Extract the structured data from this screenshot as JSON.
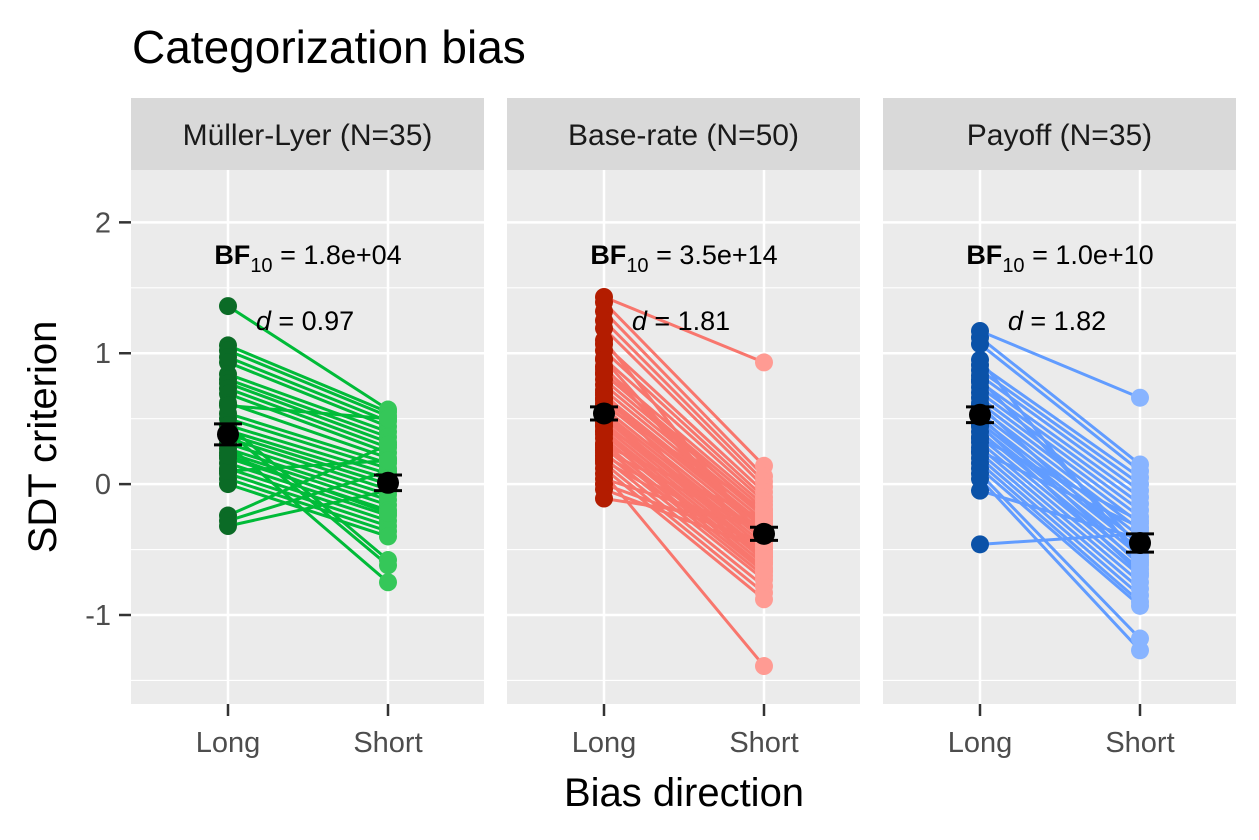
{
  "chart_data": {
    "type": "scatter",
    "title": "Categorization bias",
    "xlabel": "Bias direction",
    "ylabel": "SDT criterion",
    "ylim": [
      -1.68,
      2.4
    ],
    "yticks": [
      2,
      1,
      0,
      -1
    ],
    "ytick_labels": [
      "2",
      "1",
      "0",
      "-1"
    ],
    "x_categories": [
      "Long",
      "Short"
    ],
    "grid": true,
    "panels": [
      {
        "label": "Müller-Lyer (N=35)",
        "bf_value": " = 1.8e+04",
        "d_value": " = 0.97",
        "colors": {
          "long": "#0b6b26",
          "short": "#35c759",
          "line": "#00bb38"
        },
        "mean_long": 0.38,
        "se_long": 0.08,
        "mean_short": 0.01,
        "se_short": 0.06,
        "long": [
          1.36,
          1.06,
          1.02,
          0.97,
          0.93,
          0.84,
          0.8,
          0.77,
          0.73,
          0.69,
          0.62,
          0.54,
          0.5,
          0.45,
          0.41,
          0.38,
          0.35,
          0.31,
          0.27,
          0.24,
          0.2,
          0.16,
          0.12,
          0.08,
          0.04,
          0.0,
          0.45,
          0.4,
          0.3,
          -0.24,
          -0.28,
          -0.32,
          0.1,
          0.22,
          0.6
        ],
        "short": [
          0.57,
          0.55,
          0.52,
          0.48,
          0.44,
          0.4,
          0.36,
          0.32,
          0.28,
          0.24,
          0.2,
          0.16,
          0.12,
          0.08,
          0.04,
          0.0,
          -0.04,
          -0.08,
          -0.12,
          -0.16,
          -0.2,
          -0.24,
          -0.28,
          -0.32,
          -0.36,
          -0.4,
          -0.58,
          -0.62,
          -0.75,
          0.3,
          0.1,
          -0.05,
          0.18,
          -0.22,
          0.5
        ]
      },
      {
        "label": "Base-rate (N=50)",
        "bf_value": " = 3.5e+14",
        "d_value": " = 1.81",
        "colors": {
          "long": "#b31c00",
          "short": "#ff9b93",
          "line": "#f8766d"
        },
        "mean_long": 0.54,
        "se_long": 0.05,
        "mean_short": -0.38,
        "se_short": 0.05,
        "long": [
          1.43,
          1.39,
          1.32,
          1.25,
          1.19,
          1.07,
          1.02,
          0.96,
          0.88,
          0.84,
          0.8,
          0.76,
          0.72,
          0.68,
          0.65,
          0.62,
          0.58,
          0.55,
          0.52,
          0.5,
          0.47,
          0.44,
          0.41,
          0.38,
          0.35,
          0.31,
          0.28,
          0.24,
          0.2,
          0.16,
          0.12,
          0.08,
          0.04,
          0.0,
          -0.04,
          -0.11,
          0.6,
          0.7,
          0.9,
          0.45,
          0.3,
          0.22,
          0.55,
          0.65,
          0.85,
          1.1,
          0.4,
          0.26,
          0.18,
          0.95
        ],
        "short": [
          0.93,
          0.14,
          0.06,
          0.02,
          -0.02,
          -0.06,
          -0.1,
          -0.13,
          -0.16,
          -0.19,
          -0.22,
          -0.25,
          -0.28,
          -0.31,
          -0.34,
          -0.37,
          -0.4,
          -0.43,
          -0.46,
          -0.49,
          -0.52,
          -0.55,
          -0.58,
          -0.61,
          -0.64,
          -0.67,
          -0.7,
          -0.73,
          -0.78,
          -0.83,
          -0.88,
          -1.39,
          -0.35,
          -0.45,
          -0.5,
          -0.3,
          -0.2,
          -0.6,
          -0.42,
          -0.38,
          -0.27,
          -0.48,
          -0.56,
          -0.32,
          -0.24,
          -0.44,
          -0.66,
          -0.36,
          -0.53,
          -0.41
        ]
      },
      {
        "label": "Payoff (N=35)",
        "bf_value": " = 1.0e+10",
        "d_value": " = 1.82",
        "colors": {
          "long": "#0b52a8",
          "short": "#88b4ff",
          "line": "#619cff"
        },
        "mean_long": 0.53,
        "se_long": 0.06,
        "mean_short": -0.45,
        "se_short": 0.07,
        "long": [
          1.17,
          1.12,
          1.07,
          0.91,
          0.87,
          0.83,
          0.78,
          0.74,
          0.7,
          0.66,
          0.62,
          0.58,
          0.54,
          0.5,
          0.47,
          0.44,
          0.4,
          0.36,
          0.32,
          0.28,
          0.24,
          0.2,
          0.16,
          0.12,
          0.08,
          0.04,
          -0.05,
          -0.46,
          0.6,
          0.52,
          0.35,
          0.8,
          0.95,
          0.25,
          0.45
        ],
        "short": [
          0.66,
          0.15,
          0.1,
          0.05,
          0.0,
          -0.05,
          -0.1,
          -0.15,
          -0.2,
          -0.25,
          -0.3,
          -0.35,
          -0.4,
          -0.45,
          -0.5,
          -0.55,
          -0.6,
          -0.65,
          -0.7,
          -0.75,
          -0.8,
          -0.85,
          -0.9,
          -0.93,
          -1.18,
          -1.27,
          -0.42,
          -0.38,
          -0.52,
          -0.62,
          -0.28,
          -0.48,
          -0.58,
          -0.33,
          -0.68
        ]
      }
    ]
  }
}
